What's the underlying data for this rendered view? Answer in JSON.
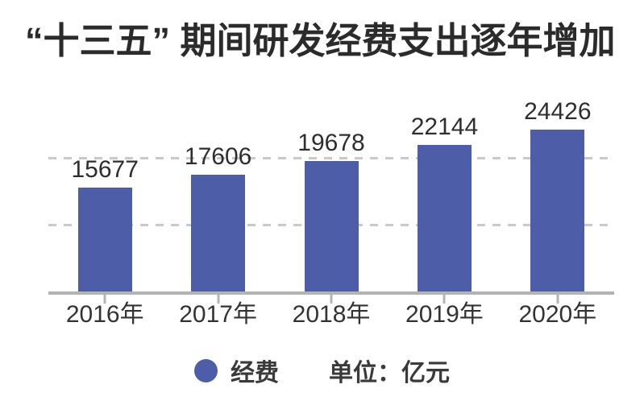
{
  "chart_data": {
    "type": "bar",
    "title": "“十三五” 期间研发经费支出逐年增加",
    "categories": [
      "2016年",
      "2017年",
      "2018年",
      "2019年",
      "2020年"
    ],
    "values": [
      15677,
      17606,
      19678,
      22144,
      24426
    ],
    "series_name": "经费",
    "unit_label": "单位：亿元",
    "ylim": [
      0,
      30000
    ],
    "gridlines": [
      10000,
      20000
    ],
    "grid_style": "dashed",
    "legend_position": "bottom-center",
    "bar_color": "#4E5DA8",
    "grid_color": "#c9c9c9",
    "axis_color": "#b3b3b3",
    "text_color": "#2e2e2e"
  }
}
